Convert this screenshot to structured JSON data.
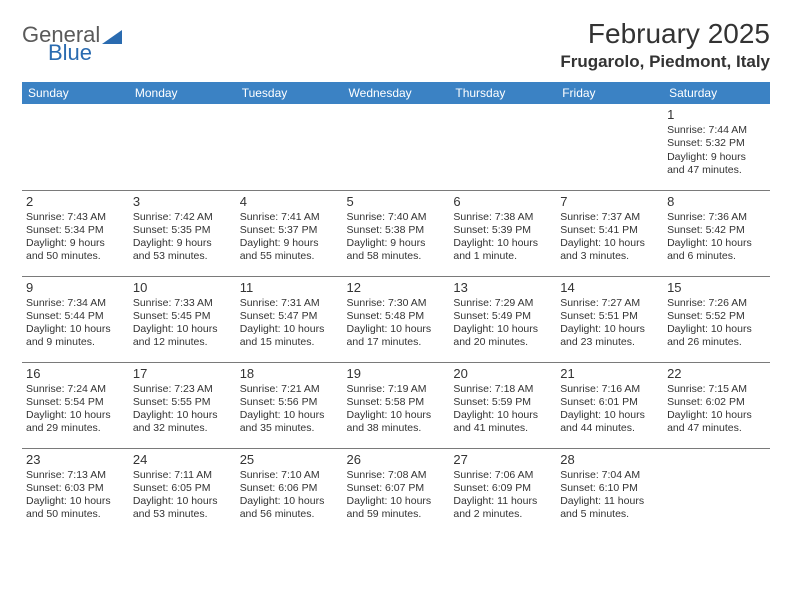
{
  "logo": {
    "text_gray": "General",
    "text_blue": "Blue"
  },
  "header": {
    "title": "February 2025",
    "location": "Frugarolo, Piedmont, Italy"
  },
  "styling": {
    "page_bg": "#ffffff",
    "header_row_bg": "#3b82c4",
    "header_row_fg": "#ffffff",
    "cell_border": "#7a7a7a",
    "text_color": "#333333",
    "logo_gray": "#5a5a5a",
    "logo_blue": "#2a6bb0",
    "title_fontsize": 28,
    "location_fontsize": 17,
    "dayhead_fontsize": 12,
    "daynum_fontsize": 13,
    "cell_fontsize": 10.5
  },
  "day_headers": [
    "Sunday",
    "Monday",
    "Tuesday",
    "Wednesday",
    "Thursday",
    "Friday",
    "Saturday"
  ],
  "weeks": [
    [
      null,
      null,
      null,
      null,
      null,
      null,
      {
        "n": "1",
        "sunrise": "Sunrise: 7:44 AM",
        "sunset": "Sunset: 5:32 PM",
        "daylight": "Daylight: 9 hours and 47 minutes."
      }
    ],
    [
      {
        "n": "2",
        "sunrise": "Sunrise: 7:43 AM",
        "sunset": "Sunset: 5:34 PM",
        "daylight": "Daylight: 9 hours and 50 minutes."
      },
      {
        "n": "3",
        "sunrise": "Sunrise: 7:42 AM",
        "sunset": "Sunset: 5:35 PM",
        "daylight": "Daylight: 9 hours and 53 minutes."
      },
      {
        "n": "4",
        "sunrise": "Sunrise: 7:41 AM",
        "sunset": "Sunset: 5:37 PM",
        "daylight": "Daylight: 9 hours and 55 minutes."
      },
      {
        "n": "5",
        "sunrise": "Sunrise: 7:40 AM",
        "sunset": "Sunset: 5:38 PM",
        "daylight": "Daylight: 9 hours and 58 minutes."
      },
      {
        "n": "6",
        "sunrise": "Sunrise: 7:38 AM",
        "sunset": "Sunset: 5:39 PM",
        "daylight": "Daylight: 10 hours and 1 minute."
      },
      {
        "n": "7",
        "sunrise": "Sunrise: 7:37 AM",
        "sunset": "Sunset: 5:41 PM",
        "daylight": "Daylight: 10 hours and 3 minutes."
      },
      {
        "n": "8",
        "sunrise": "Sunrise: 7:36 AM",
        "sunset": "Sunset: 5:42 PM",
        "daylight": "Daylight: 10 hours and 6 minutes."
      }
    ],
    [
      {
        "n": "9",
        "sunrise": "Sunrise: 7:34 AM",
        "sunset": "Sunset: 5:44 PM",
        "daylight": "Daylight: 10 hours and 9 minutes."
      },
      {
        "n": "10",
        "sunrise": "Sunrise: 7:33 AM",
        "sunset": "Sunset: 5:45 PM",
        "daylight": "Daylight: 10 hours and 12 minutes."
      },
      {
        "n": "11",
        "sunrise": "Sunrise: 7:31 AM",
        "sunset": "Sunset: 5:47 PM",
        "daylight": "Daylight: 10 hours and 15 minutes."
      },
      {
        "n": "12",
        "sunrise": "Sunrise: 7:30 AM",
        "sunset": "Sunset: 5:48 PM",
        "daylight": "Daylight: 10 hours and 17 minutes."
      },
      {
        "n": "13",
        "sunrise": "Sunrise: 7:29 AM",
        "sunset": "Sunset: 5:49 PM",
        "daylight": "Daylight: 10 hours and 20 minutes."
      },
      {
        "n": "14",
        "sunrise": "Sunrise: 7:27 AM",
        "sunset": "Sunset: 5:51 PM",
        "daylight": "Daylight: 10 hours and 23 minutes."
      },
      {
        "n": "15",
        "sunrise": "Sunrise: 7:26 AM",
        "sunset": "Sunset: 5:52 PM",
        "daylight": "Daylight: 10 hours and 26 minutes."
      }
    ],
    [
      {
        "n": "16",
        "sunrise": "Sunrise: 7:24 AM",
        "sunset": "Sunset: 5:54 PM",
        "daylight": "Daylight: 10 hours and 29 minutes."
      },
      {
        "n": "17",
        "sunrise": "Sunrise: 7:23 AM",
        "sunset": "Sunset: 5:55 PM",
        "daylight": "Daylight: 10 hours and 32 minutes."
      },
      {
        "n": "18",
        "sunrise": "Sunrise: 7:21 AM",
        "sunset": "Sunset: 5:56 PM",
        "daylight": "Daylight: 10 hours and 35 minutes."
      },
      {
        "n": "19",
        "sunrise": "Sunrise: 7:19 AM",
        "sunset": "Sunset: 5:58 PM",
        "daylight": "Daylight: 10 hours and 38 minutes."
      },
      {
        "n": "20",
        "sunrise": "Sunrise: 7:18 AM",
        "sunset": "Sunset: 5:59 PM",
        "daylight": "Daylight: 10 hours and 41 minutes."
      },
      {
        "n": "21",
        "sunrise": "Sunrise: 7:16 AM",
        "sunset": "Sunset: 6:01 PM",
        "daylight": "Daylight: 10 hours and 44 minutes."
      },
      {
        "n": "22",
        "sunrise": "Sunrise: 7:15 AM",
        "sunset": "Sunset: 6:02 PM",
        "daylight": "Daylight: 10 hours and 47 minutes."
      }
    ],
    [
      {
        "n": "23",
        "sunrise": "Sunrise: 7:13 AM",
        "sunset": "Sunset: 6:03 PM",
        "daylight": "Daylight: 10 hours and 50 minutes."
      },
      {
        "n": "24",
        "sunrise": "Sunrise: 7:11 AM",
        "sunset": "Sunset: 6:05 PM",
        "daylight": "Daylight: 10 hours and 53 minutes."
      },
      {
        "n": "25",
        "sunrise": "Sunrise: 7:10 AM",
        "sunset": "Sunset: 6:06 PM",
        "daylight": "Daylight: 10 hours and 56 minutes."
      },
      {
        "n": "26",
        "sunrise": "Sunrise: 7:08 AM",
        "sunset": "Sunset: 6:07 PM",
        "daylight": "Daylight: 10 hours and 59 minutes."
      },
      {
        "n": "27",
        "sunrise": "Sunrise: 7:06 AM",
        "sunset": "Sunset: 6:09 PM",
        "daylight": "Daylight: 11 hours and 2 minutes."
      },
      {
        "n": "28",
        "sunrise": "Sunrise: 7:04 AM",
        "sunset": "Sunset: 6:10 PM",
        "daylight": "Daylight: 11 hours and 5 minutes."
      },
      null
    ]
  ]
}
